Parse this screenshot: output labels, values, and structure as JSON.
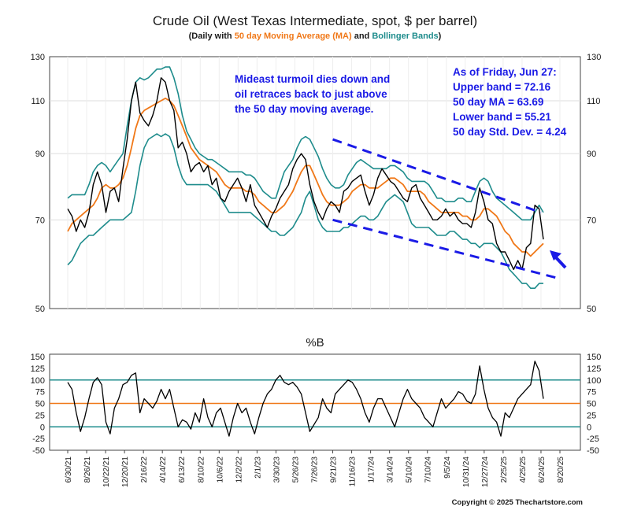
{
  "colors": {
    "price": "#000000",
    "ma": "#f07818",
    "bands": "#1e8c8c",
    "channel": "#1a1ae6",
    "annotation": "#1a1ae6",
    "ref_line": "#1e8c8c",
    "mid_line": "#f07818"
  },
  "title": "Crude Oil (West Texas Intermediate, spot, $ per barrel)",
  "subtitle": {
    "part1": "(Daily with ",
    "part2": "50 day Moving Average (MA)",
    "part3": " and ",
    "part4": "Bollinger Bands",
    "part5": ")"
  },
  "annotation_left": [
    "Mideast turmoil dies down and",
    "oil retraces back to just above",
    "the 50 day moving average."
  ],
  "annotation_right": [
    "As of Friday, Jun 27:",
    "Upper band = 72.16",
    "50 day MA = 63.69",
    "Lower band = 55.21",
    "50 day Std. Dev. = 4.24"
  ],
  "percent_b_title": "%B",
  "copyright": "Copyright © 2025 Thechartstore.com",
  "chart_data": [
    {
      "type": "line",
      "title": "Crude Oil (West Texas Intermediate, spot, $ per barrel)",
      "y_scale": "log",
      "ylim": [
        50,
        130
      ],
      "y_ticks": [
        50,
        70,
        90,
        110,
        130
      ],
      "x_tick_labels": [
        "6/30/21",
        "8/26/21",
        "10/22/21",
        "12/20/21",
        "2/16/22",
        "4/14/22",
        "6/13/22",
        "8/10/22",
        "10/6/22",
        "12/2/22",
        "2/1/23",
        "3/30/23",
        "5/26/23",
        "7/26/23",
        "9/21/23",
        "11/16/23",
        "1/17/24",
        "3/14/24",
        "5/10/24",
        "7/10/24",
        "9/5/24",
        "10/31/24",
        "12/27/24",
        "2/25/25",
        "4/25/25",
        "6/24/25",
        "8/20/25"
      ],
      "series": [
        {
          "name": "Price",
          "values": [
            73,
            71,
            67,
            70,
            68,
            72,
            80,
            84,
            80,
            72,
            78,
            79,
            75,
            85,
            95,
            110,
            118,
            105,
            102,
            100,
            104,
            110,
            120,
            118,
            110,
            106,
            92,
            94,
            90,
            84,
            86,
            87,
            84,
            86,
            80,
            82,
            76,
            75,
            78,
            80,
            82,
            79,
            75,
            80,
            74,
            72,
            70,
            68,
            71,
            73,
            76,
            78,
            80,
            85,
            88,
            90,
            88,
            80,
            75,
            72,
            70,
            73,
            75,
            74,
            72,
            78,
            79,
            81,
            82,
            83,
            78,
            74,
            77,
            82,
            85,
            83,
            81,
            80,
            78,
            76,
            75,
            79,
            80,
            76,
            74,
            72,
            70,
            70,
            71,
            73,
            71,
            72,
            70,
            69,
            69,
            68,
            72,
            79,
            75,
            70,
            69,
            64,
            62,
            62,
            60,
            58,
            60,
            58,
            63,
            64,
            74,
            73,
            65
          ]
        },
        {
          "name": "50 day Moving Average (MA)",
          "values": [
            67,
            69,
            70,
            71,
            72,
            73,
            74,
            76,
            79,
            80,
            79,
            79,
            80,
            82,
            86,
            92,
            99,
            104,
            106,
            107,
            108,
            109,
            110,
            111,
            110,
            108,
            104,
            100,
            96,
            92,
            90,
            88,
            87,
            86,
            85,
            84,
            82,
            80,
            79,
            79,
            79,
            79,
            78,
            78,
            77,
            75,
            74,
            73,
            72,
            72,
            73,
            74,
            76,
            78,
            81,
            84,
            86,
            86,
            83,
            80,
            77,
            75,
            74,
            74,
            74,
            75,
            76,
            78,
            79,
            80,
            80,
            79,
            79,
            79,
            80,
            81,
            82,
            82,
            81,
            80,
            78,
            78,
            78,
            78,
            77,
            75,
            74,
            73,
            72,
            72,
            72,
            72,
            72,
            71,
            71,
            70,
            70,
            71,
            73,
            73,
            72,
            71,
            69,
            67,
            66,
            64,
            63,
            62,
            62,
            61,
            62,
            63,
            64
          ]
        },
        {
          "name": "Upper Bollinger Band",
          "values": [
            76,
            77,
            77,
            77,
            77,
            80,
            84,
            86,
            87,
            86,
            84,
            86,
            88,
            90,
            100,
            110,
            118,
            120,
            119,
            120,
            122,
            124,
            124,
            125,
            125,
            120,
            113,
            104,
            98,
            95,
            92,
            90,
            89,
            88,
            88,
            87,
            86,
            85,
            84,
            84,
            84,
            84,
            83,
            83,
            82,
            80,
            78,
            77,
            76,
            76,
            80,
            84,
            86,
            88,
            92,
            95,
            96,
            95,
            92,
            89,
            85,
            82,
            80,
            79,
            79,
            80,
            83,
            85,
            87,
            88,
            87,
            86,
            85,
            85,
            85,
            85,
            86,
            86,
            85,
            84,
            82,
            81,
            81,
            81,
            81,
            80,
            78,
            76,
            76,
            75,
            75,
            75,
            76,
            76,
            75,
            75,
            78,
            81,
            82,
            81,
            78,
            76,
            75,
            74,
            73,
            72,
            71,
            70,
            70,
            70,
            72,
            74,
            72
          ]
        },
        {
          "name": "Lower Bollinger Band",
          "values": [
            59,
            60,
            62,
            64,
            65,
            66,
            66,
            67,
            68,
            69,
            70,
            70,
            70,
            70,
            71,
            72,
            78,
            86,
            92,
            95,
            96,
            97,
            96,
            97,
            96,
            92,
            86,
            82,
            80,
            80,
            80,
            80,
            80,
            80,
            79,
            78,
            76,
            74,
            72,
            72,
            72,
            72,
            72,
            72,
            71,
            70,
            69,
            68,
            67,
            67,
            66,
            66,
            67,
            68,
            70,
            72,
            76,
            78,
            74,
            70,
            68,
            67,
            67,
            67,
            67,
            68,
            68,
            69,
            70,
            71,
            71,
            70,
            70,
            71,
            73,
            75,
            76,
            77,
            76,
            75,
            72,
            69,
            68,
            68,
            68,
            68,
            67,
            66,
            66,
            66,
            67,
            67,
            66,
            65,
            65,
            64,
            64,
            63,
            64,
            64,
            64,
            63,
            62,
            60,
            58,
            57,
            56,
            55,
            55,
            54,
            54,
            55,
            55
          ]
        }
      ],
      "channel_upper": {
        "x_start": "9/21/23",
        "y_start": 95,
        "x_end": "6/24/25",
        "y_end": 72
      },
      "channel_lower": {
        "x_start": "9/21/23",
        "y_start": 70,
        "x_end": "8/20/25",
        "y_end": 56
      }
    },
    {
      "type": "line",
      "title": "%B",
      "ylim": [
        -50,
        150
      ],
      "y_ticks": [
        -50,
        -25,
        0,
        25,
        50,
        75,
        100,
        125,
        150
      ],
      "reference_lines": [
        0,
        50,
        100
      ],
      "series": [
        {
          "name": "%B",
          "values": [
            95,
            80,
            30,
            -10,
            20,
            60,
            95,
            105,
            90,
            10,
            -15,
            40,
            60,
            90,
            95,
            110,
            115,
            30,
            60,
            50,
            40,
            55,
            80,
            60,
            80,
            40,
            0,
            15,
            10,
            -5,
            30,
            10,
            60,
            20,
            0,
            30,
            40,
            10,
            -20,
            20,
            50,
            30,
            40,
            10,
            -15,
            20,
            50,
            70,
            80,
            100,
            110,
            95,
            90,
            95,
            85,
            70,
            30,
            -10,
            5,
            20,
            60,
            40,
            30,
            70,
            80,
            90,
            100,
            95,
            80,
            60,
            30,
            10,
            40,
            60,
            60,
            40,
            20,
            0,
            30,
            60,
            80,
            60,
            50,
            40,
            20,
            10,
            0,
            30,
            60,
            40,
            50,
            60,
            75,
            70,
            55,
            50,
            70,
            130,
            80,
            40,
            20,
            10,
            -20,
            30,
            20,
            40,
            60,
            70,
            80,
            90,
            140,
            120,
            60
          ]
        }
      ]
    }
  ]
}
